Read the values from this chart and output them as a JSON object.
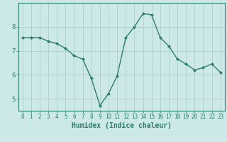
{
  "x": [
    0,
    1,
    2,
    3,
    4,
    5,
    6,
    7,
    8,
    9,
    10,
    11,
    12,
    13,
    14,
    15,
    16,
    17,
    18,
    19,
    20,
    21,
    22,
    23
  ],
  "y": [
    7.55,
    7.55,
    7.55,
    7.4,
    7.3,
    7.1,
    6.8,
    6.65,
    5.85,
    4.72,
    5.22,
    5.95,
    7.55,
    8.0,
    8.55,
    8.5,
    7.55,
    7.2,
    6.65,
    6.45,
    6.2,
    6.3,
    6.45,
    6.1
  ],
  "line_color": "#2e7d6e",
  "marker": "D",
  "marker_size": 2.0,
  "bg_color": "#cce8e8",
  "grid_color": "#aacccc",
  "xlabel": "Humidex (Indice chaleur)",
  "xlabel_color": "#2e7d6e",
  "xlim": [
    -0.5,
    23.5
  ],
  "ylim": [
    4.5,
    9.0
  ],
  "yticks": [
    5,
    6,
    7,
    8
  ],
  "xticks": [
    0,
    1,
    2,
    3,
    4,
    5,
    6,
    7,
    8,
    9,
    10,
    11,
    12,
    13,
    14,
    15,
    16,
    17,
    18,
    19,
    20,
    21,
    22,
    23
  ],
  "tick_color": "#2e7d6e",
  "axis_color": "#2e7d6e",
  "line_width": 1.0,
  "xtick_fontsize": 5.5,
  "ytick_fontsize": 6.5,
  "xlabel_fontsize": 7.0
}
